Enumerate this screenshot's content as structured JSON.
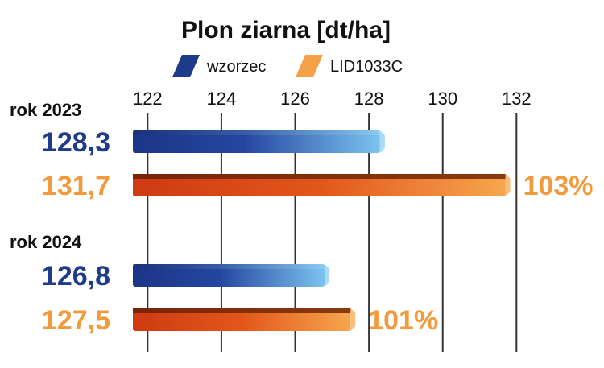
{
  "chart_data": {
    "type": "bar",
    "orientation": "horizontal",
    "title": "Plon ziarna [dt/ha]",
    "xlim": [
      121.6,
      133
    ],
    "ticks": [
      122,
      124,
      126,
      128,
      130,
      132
    ],
    "grid": true,
    "legend_position": "top",
    "series": [
      {
        "name": "wzorzec",
        "color": "#1e3a8a"
      },
      {
        "name": "LID1033C",
        "color": "#f5a14a"
      }
    ],
    "groups": [
      {
        "label": "rok 2023",
        "bars": [
          {
            "series": "wzorzec",
            "value": 128.3,
            "value_label": "128,3",
            "percent_label": ""
          },
          {
            "series": "LID1033C",
            "value": 131.7,
            "value_label": "131,7",
            "percent_label": "103%"
          }
        ]
      },
      {
        "label": "rok 2024",
        "bars": [
          {
            "series": "wzorzec",
            "value": 126.8,
            "value_label": "126,8",
            "percent_label": ""
          },
          {
            "series": "LID1033C",
            "value": 127.5,
            "value_label": "127,5",
            "percent_label": "101%"
          }
        ]
      }
    ],
    "colors": {
      "blue_dark": "#1c3587",
      "blue_light": "#7cc3ef",
      "orange_dark": "#cf3a12",
      "orange_light": "#f6a64e",
      "value_blue": "#1f3b8a",
      "value_orange": "#f39a3c"
    }
  }
}
